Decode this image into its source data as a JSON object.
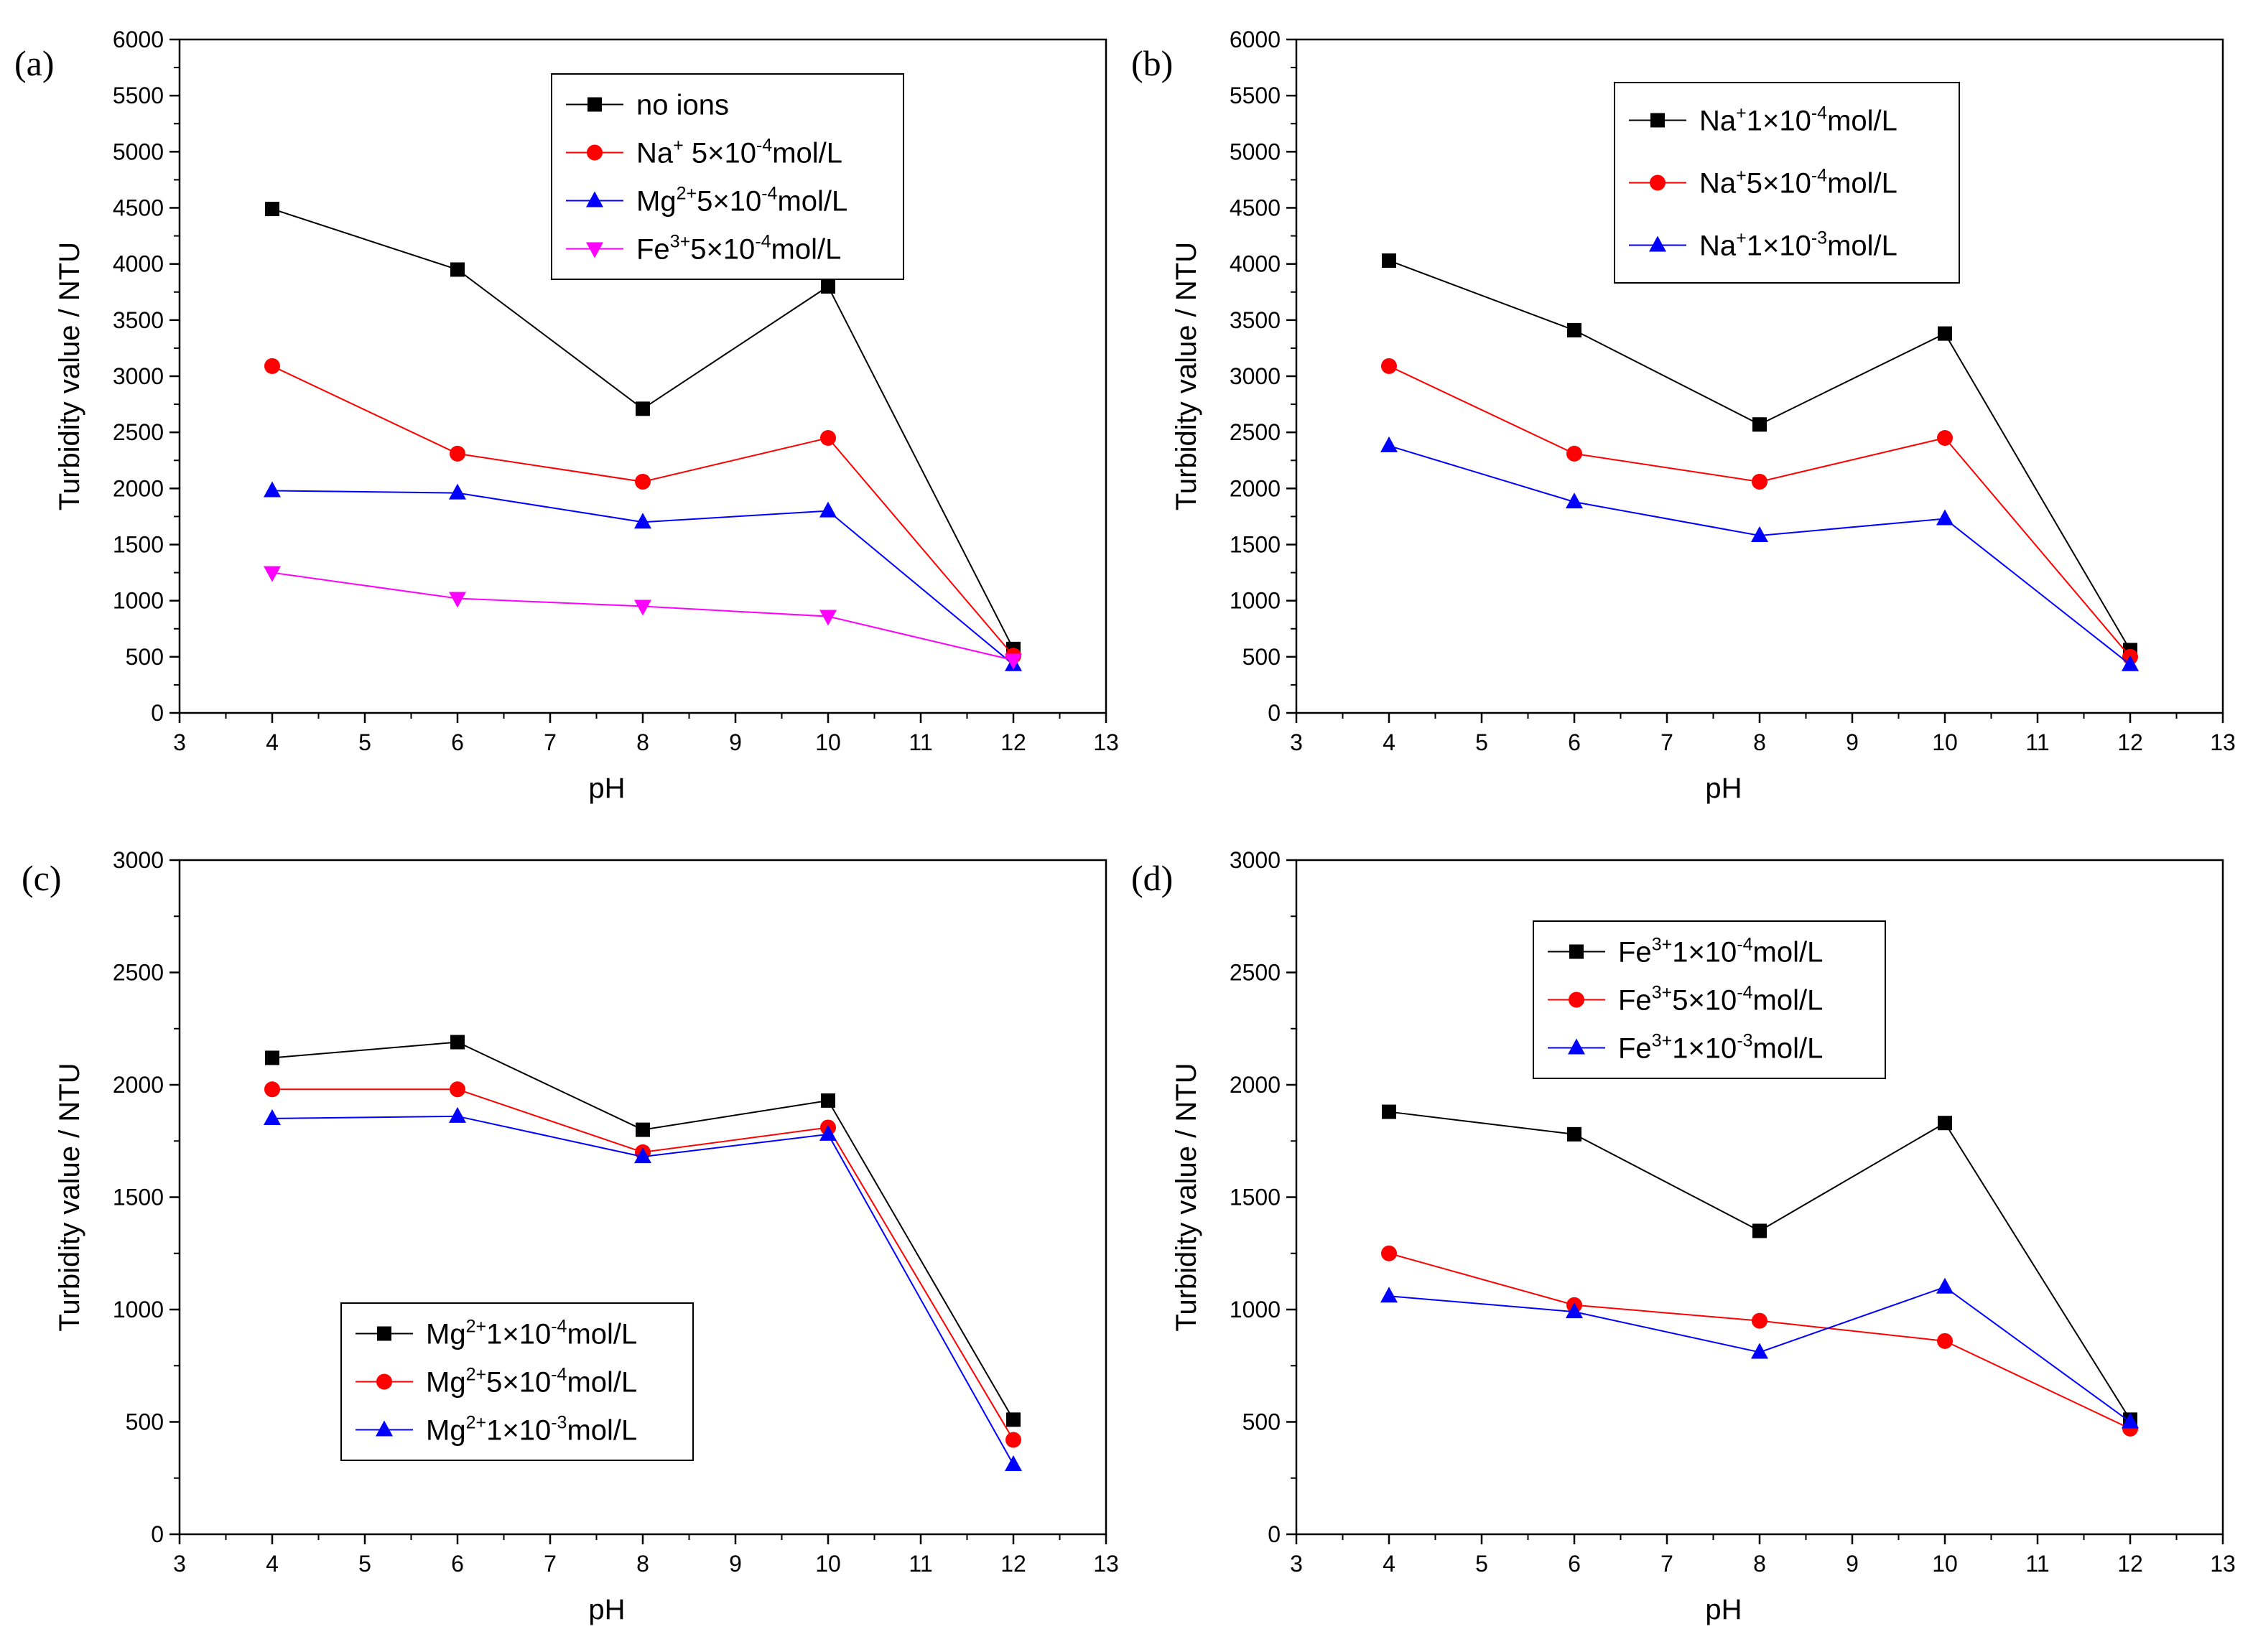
{
  "chart_data": [
    {
      "type": "line",
      "panel_label": "(a)",
      "xlabel": "pH",
      "ylabel": "Turbidity value / NTU",
      "xlim": [
        3,
        13
      ],
      "ylim": [
        0,
        6000
      ],
      "xticks": [
        3,
        4,
        5,
        6,
        7,
        8,
        9,
        10,
        11,
        12,
        13
      ],
      "yticks": [
        0,
        500,
        1000,
        1500,
        2000,
        2500,
        3000,
        3500,
        4000,
        4500,
        5000,
        5500,
        6000
      ],
      "x": [
        4,
        6,
        8,
        10,
        12
      ],
      "legend_position": "top-right",
      "series": [
        {
          "name": "no ions",
          "name_parts": [
            [
              "no ions",
              "n"
            ]
          ],
          "color": "#000000",
          "marker": "square",
          "values": [
            4490,
            3950,
            2710,
            3800,
            570
          ]
        },
        {
          "name": "Na+ 5×10-4mol/L",
          "name_parts": [
            [
              "Na",
              "n"
            ],
            [
              "+",
              "sup"
            ],
            [
              " 5×10",
              "n"
            ],
            [
              "-4",
              "sup"
            ],
            [
              "mol/L",
              "n"
            ]
          ],
          "color": "#ff0000",
          "marker": "circle",
          "values": [
            3090,
            2310,
            2060,
            2450,
            510
          ]
        },
        {
          "name": "Mg2+5×10-4mol/L",
          "name_parts": [
            [
              "Mg",
              "n"
            ],
            [
              "2+",
              "sup"
            ],
            [
              "5×10",
              "n"
            ],
            [
              "-4",
              "sup"
            ],
            [
              "mol/L",
              "n"
            ]
          ],
          "color": "#0000ff",
          "marker": "triangle-up",
          "values": [
            1980,
            1960,
            1700,
            1800,
            430
          ]
        },
        {
          "name": "Fe3+5×10-4mol/L",
          "name_parts": [
            [
              "Fe",
              "n"
            ],
            [
              "3+",
              "sup"
            ],
            [
              "5×10",
              "n"
            ],
            [
              "-4",
              "sup"
            ],
            [
              "mol/L",
              "n"
            ]
          ],
          "color": "#ff00ff",
          "marker": "triangle-down",
          "values": [
            1250,
            1020,
            950,
            860,
            470
          ]
        }
      ]
    },
    {
      "type": "line",
      "panel_label": "(b)",
      "xlabel": "pH",
      "ylabel": "Turbidity value / NTU",
      "xlim": [
        3,
        13
      ],
      "ylim": [
        0,
        6000
      ],
      "xticks": [
        3,
        4,
        5,
        6,
        7,
        8,
        9,
        10,
        11,
        12,
        13
      ],
      "yticks": [
        0,
        500,
        1000,
        1500,
        2000,
        2500,
        3000,
        3500,
        4000,
        4500,
        5000,
        5500,
        6000
      ],
      "x": [
        4,
        6,
        8,
        10,
        12
      ],
      "legend_position": "top-right",
      "series": [
        {
          "name": "Na+1×10-4mol/L",
          "name_parts": [
            [
              "Na",
              "n"
            ],
            [
              "+",
              "sup"
            ],
            [
              "1×10",
              "n"
            ],
            [
              "-4",
              "sup"
            ],
            [
              "mol/L",
              "n"
            ]
          ],
          "color": "#000000",
          "marker": "square",
          "values": [
            4030,
            3410,
            2570,
            3380,
            560
          ]
        },
        {
          "name": "Na+5×10-4mol/L",
          "name_parts": [
            [
              "Na",
              "n"
            ],
            [
              "+",
              "sup"
            ],
            [
              "5×10",
              "n"
            ],
            [
              "-4",
              "sup"
            ],
            [
              "mol/L",
              "n"
            ]
          ],
          "color": "#ff0000",
          "marker": "circle",
          "values": [
            3090,
            2310,
            2060,
            2450,
            500
          ]
        },
        {
          "name": "Na+1×10-3mol/L",
          "name_parts": [
            [
              "Na",
              "n"
            ],
            [
              "+",
              "sup"
            ],
            [
              "1×10",
              "n"
            ],
            [
              "-3",
              "sup"
            ],
            [
              "mol/L",
              "n"
            ]
          ],
          "color": "#0000ff",
          "marker": "triangle-up",
          "values": [
            2380,
            1880,
            1580,
            1730,
            430
          ]
        }
      ]
    },
    {
      "type": "line",
      "panel_label": "(c)",
      "xlabel": "pH",
      "ylabel": "Turbidity value / NTU",
      "xlim": [
        3,
        13
      ],
      "ylim": [
        0,
        3000
      ],
      "xticks": [
        3,
        4,
        5,
        6,
        7,
        8,
        9,
        10,
        11,
        12,
        13
      ],
      "yticks": [
        0,
        500,
        1000,
        1500,
        2000,
        2500,
        3000
      ],
      "x": [
        4,
        6,
        8,
        10,
        12
      ],
      "legend_position": "bottom-center",
      "series": [
        {
          "name": "Mg2+1×10-4mol/L",
          "name_parts": [
            [
              "Mg",
              "n"
            ],
            [
              "2+",
              "sup"
            ],
            [
              "1×10",
              "n"
            ],
            [
              "-4",
              "sup"
            ],
            [
              "mol/L",
              "n"
            ]
          ],
          "color": "#000000",
          "marker": "square",
          "values": [
            2120,
            2190,
            1800,
            1930,
            510
          ]
        },
        {
          "name": "Mg2+5×10-4mol/L",
          "name_parts": [
            [
              "Mg",
              "n"
            ],
            [
              "2+",
              "sup"
            ],
            [
              "5×10",
              "n"
            ],
            [
              "-4",
              "sup"
            ],
            [
              "mol/L",
              "n"
            ]
          ],
          "color": "#ff0000",
          "marker": "circle",
          "values": [
            1980,
            1980,
            1700,
            1810,
            420
          ]
        },
        {
          "name": "Mg2+1×10-3mol/L",
          "name_parts": [
            [
              "Mg",
              "n"
            ],
            [
              "2+",
              "sup"
            ],
            [
              "1×10",
              "n"
            ],
            [
              "-3",
              "sup"
            ],
            [
              "mol/L",
              "n"
            ]
          ],
          "color": "#0000ff",
          "marker": "triangle-up",
          "values": [
            1850,
            1860,
            1680,
            1780,
            310
          ]
        }
      ]
    },
    {
      "type": "line",
      "panel_label": "(d)",
      "xlabel": "pH",
      "ylabel": "Turbidity value / NTU",
      "xlim": [
        3,
        13
      ],
      "ylim": [
        0,
        3000
      ],
      "xticks": [
        3,
        4,
        5,
        6,
        7,
        8,
        9,
        10,
        11,
        12,
        13
      ],
      "yticks": [
        0,
        500,
        1000,
        1500,
        2000,
        2500,
        3000
      ],
      "x": [
        4,
        6,
        8,
        10,
        12
      ],
      "legend_position": "top-right",
      "series": [
        {
          "name": "Fe3+1×10-4mol/L",
          "name_parts": [
            [
              "Fe",
              "n"
            ],
            [
              "3+",
              "sup"
            ],
            [
              "1×10",
              "n"
            ],
            [
              "-4",
              "sup"
            ],
            [
              "mol/L",
              "n"
            ]
          ],
          "color": "#000000",
          "marker": "square",
          "values": [
            1880,
            1780,
            1350,
            1830,
            510
          ]
        },
        {
          "name": "Fe3+5×10-4mol/L",
          "name_parts": [
            [
              "Fe",
              "n"
            ],
            [
              "3+",
              "sup"
            ],
            [
              "5×10",
              "n"
            ],
            [
              "-4",
              "sup"
            ],
            [
              "mol/L",
              "n"
            ]
          ],
          "color": "#ff0000",
          "marker": "circle",
          "values": [
            1250,
            1020,
            950,
            860,
            470
          ]
        },
        {
          "name": "Fe3+1×10-3mol/L",
          "name_parts": [
            [
              "Fe",
              "n"
            ],
            [
              "3+",
              "sup"
            ],
            [
              "1×10",
              "n"
            ],
            [
              "-3",
              "sup"
            ],
            [
              "mol/L",
              "n"
            ]
          ],
          "color": "#0000ff",
          "marker": "triangle-up",
          "values": [
            1060,
            990,
            810,
            1100,
            500
          ]
        }
      ]
    }
  ]
}
